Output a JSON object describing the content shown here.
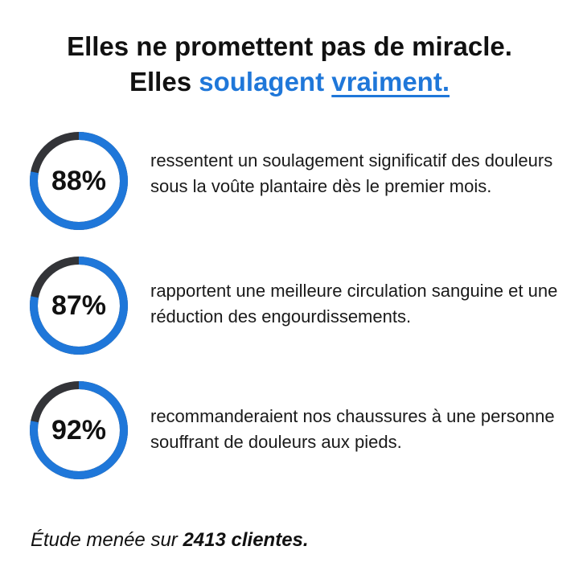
{
  "headline": {
    "line1": "Elles ne promettent pas de miracle.",
    "line2_prefix": "Elles ",
    "line2_highlight": "soulagent",
    "line2_link": "vraiment."
  },
  "colors": {
    "accent": "#1f77d9",
    "track_dark": "#333438"
  },
  "stats": [
    {
      "percent": "88%",
      "value": 88,
      "text": "ressentent un soulagement significatif des douleurs sous la voûte plantaire dès le premier mois."
    },
    {
      "percent": "87%",
      "value": 87,
      "text": "rapportent une meilleure circulation sanguine et une réduction des engourdissements."
    },
    {
      "percent": "92%",
      "value": 92,
      "text": "recommanderaient nos chaussures à une personne souffrant de douleurs aux pieds."
    }
  ],
  "footer": {
    "prefix": "Étude menée sur ",
    "bold": "2413 clientes",
    "suffix": "."
  }
}
